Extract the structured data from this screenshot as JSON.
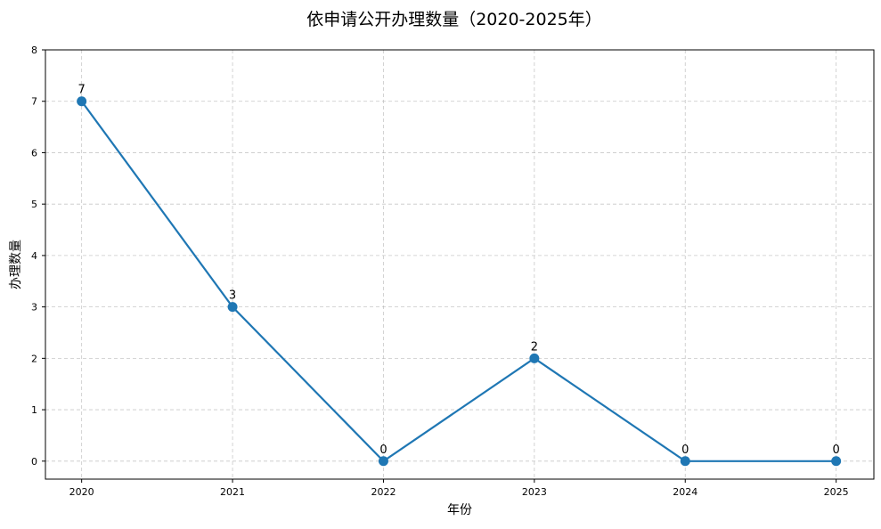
{
  "chart_data": {
    "type": "line",
    "title": "依申请公开办理数量（2020-2025年）",
    "xlabel": "年份",
    "ylabel": "办理数量",
    "x": [
      2020,
      2021,
      2022,
      2023,
      2024,
      2025
    ],
    "values": [
      7,
      3,
      0,
      2,
      0,
      0
    ],
    "data_labels": [
      "7",
      "3",
      "0",
      "2",
      "0",
      "0"
    ],
    "xticks": [
      "2020",
      "2021",
      "2022",
      "2023",
      "2024",
      "2025"
    ],
    "yticks": [
      "0",
      "1",
      "2",
      "3",
      "4",
      "5",
      "6",
      "7",
      "8"
    ],
    "xlim": [
      2019.76,
      2025.25
    ],
    "ylim": [
      -0.35,
      8
    ],
    "grid": true,
    "grid_style": "dashed",
    "marker": "circle",
    "color": "#1f77b4"
  }
}
